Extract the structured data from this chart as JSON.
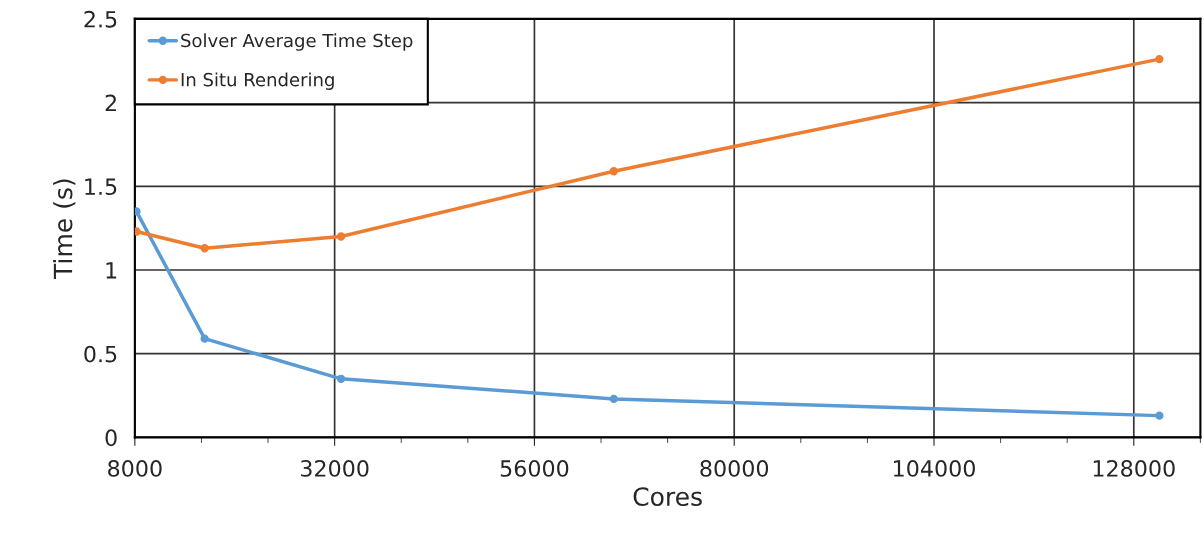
{
  "chart_data": {
    "type": "line",
    "xlabel": "Cores",
    "ylabel": "Time (s)",
    "x": [
      8192,
      16384,
      32768,
      65536,
      131072
    ],
    "series": [
      {
        "name": "Solver Average Time Step",
        "color": "#5b9bd5",
        "values": [
          1.35,
          0.59,
          0.35,
          0.23,
          0.13
        ]
      },
      {
        "name": "In Situ Rendering",
        "color": "#ed7d31",
        "values": [
          1.23,
          1.13,
          1.2,
          1.59,
          2.26
        ]
      }
    ],
    "xlim": [
      8000,
      136000
    ],
    "xticks": [
      8000,
      32000,
      56000,
      80000,
      104000,
      128000
    ],
    "ylim": [
      0,
      2.5
    ],
    "yticks": [
      0,
      0.5,
      1,
      1.5,
      2,
      2.5
    ],
    "grid": true,
    "legend": "top left",
    "marker": "circle",
    "line_style": "solid"
  }
}
